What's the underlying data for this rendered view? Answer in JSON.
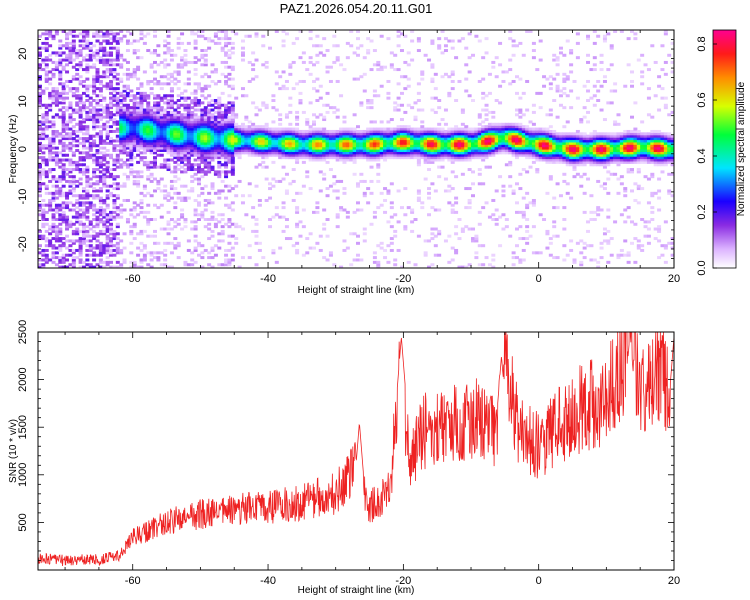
{
  "title": "PAZ1.2026.054.20.11.G01",
  "chart_data": [
    {
      "type": "heatmap",
      "xlabel": "Height of straight line (km)",
      "ylabel": "Frequency (Hz)",
      "xlim": [
        -74,
        20
      ],
      "ylim": [
        -25,
        25
      ],
      "x_ticks": [
        -60,
        -40,
        -20,
        0,
        20
      ],
      "y_ticks": [
        -20,
        -10,
        0,
        10,
        20
      ],
      "colorbar": {
        "label": "Normalized spectral amplitude",
        "range": [
          0,
          0.85
        ],
        "ticks": [
          0.0,
          0.2,
          0.4,
          0.6,
          0.8
        ],
        "colormap": "white-violet-blue-cyan-green-yellow-red-magenta"
      },
      "ridge": {
        "description": "dominant frequency near 0-5 Hz across heights",
        "points": [
          [
            -60,
            4.5
          ],
          [
            -55,
            3.5
          ],
          [
            -50,
            2.5
          ],
          [
            -45,
            2
          ],
          [
            -40,
            1.5
          ],
          [
            -35,
            1
          ],
          [
            -30,
            1
          ],
          [
            -25,
            1
          ],
          [
            -20,
            1.5
          ],
          [
            -15,
            1
          ],
          [
            -10,
            1
          ],
          [
            -5,
            2.5
          ],
          [
            0,
            1
          ],
          [
            5,
            0
          ],
          [
            10,
            0
          ],
          [
            15,
            0.5
          ],
          [
            20,
            0
          ]
        ]
      }
    },
    {
      "type": "line",
      "xlabel": "Height of straight line (km)",
      "ylabel": "SNR (10 * v/v)",
      "xlim": [
        -74,
        20
      ],
      "ylim": [
        0,
        2500
      ],
      "x_ticks": [
        -60,
        -40,
        -20,
        0,
        20
      ],
      "y_ticks": [
        500,
        1000,
        1500,
        2000,
        2500
      ],
      "series": [
        {
          "name": "SNR",
          "color": "#ee2222",
          "trend": {
            "x": [
              -74,
              -70,
              -65,
              -62,
              -60,
              -55,
              -50,
              -45,
              -40,
              -35,
              -30,
              -27,
              -25,
              -22,
              -20.5,
              -19,
              -17,
              -15,
              -10,
              -6,
              -5,
              -3,
              0,
              5,
              10,
              13.5,
              15,
              18,
              20
            ],
            "y": [
              120,
              100,
              110,
              150,
              340,
              500,
              580,
              630,
              660,
              720,
              800,
              1100,
              650,
              850,
              2000,
              1150,
              1450,
              1500,
              1600,
              1500,
              2100,
              1500,
              1300,
              1650,
              1800,
              2400,
              1850,
              2050,
              1800
            ]
          },
          "spikes": [
            [
              -26.5,
              1550
            ],
            [
              -20.3,
              2450
            ],
            [
              -5.5,
              2250
            ],
            [
              13.5,
              2500
            ],
            [
              20,
              2450
            ]
          ]
        }
      ]
    }
  ]
}
